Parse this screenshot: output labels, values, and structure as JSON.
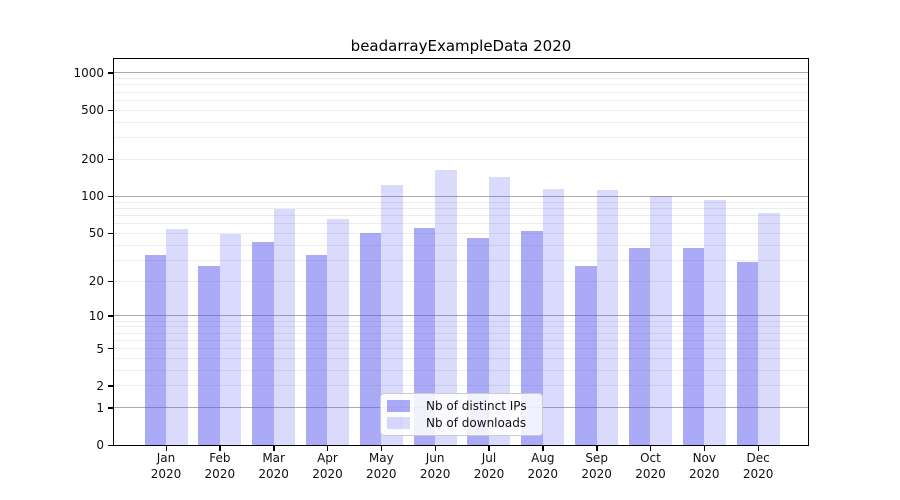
{
  "chart_data": {
    "type": "bar",
    "title": "beadarrayExampleData 2020",
    "categories": [
      "Jan 2020",
      "Feb 2020",
      "Mar 2020",
      "Apr 2020",
      "May 2020",
      "Jun 2020",
      "Jul 2020",
      "Aug 2020",
      "Sep 2020",
      "Oct 2020",
      "Nov 2020",
      "Dec 2020"
    ],
    "series": [
      {
        "name": "Nb of distinct IPs",
        "color": "rgba(85,85,240,0.50)",
        "values": [
          33,
          27,
          42,
          33,
          50,
          55,
          46,
          52,
          27,
          38,
          38,
          29
        ]
      },
      {
        "name": "Nb of downloads",
        "color": "rgba(85,85,240,0.22)",
        "values": [
          54,
          49,
          79,
          66,
          124,
          164,
          145,
          115,
          112,
          101,
          94,
          74
        ]
      }
    ],
    "xlabel": "",
    "ylabel": "",
    "yscale": "log1p",
    "ylim": [
      0,
      1300
    ],
    "yticks": [
      0,
      1,
      2,
      5,
      10,
      20,
      50,
      100,
      200,
      500,
      1000
    ],
    "grid": "horizontal, minor lines light gray at 2-9 per decade, major gray lines at 1/10/100/1000",
    "legend_position": "lower center inside plot",
    "legend_entries": [
      "Nb of distinct IPs",
      "Nb of downloads"
    ]
  },
  "colors": {
    "bar_base": "#5555f0",
    "bar_ips_rendered": "#aaaaf8",
    "bar_downloads_rendered": "#d8d8fa",
    "grid_minor": "#ececec",
    "grid_major": "#ababab",
    "spine": "#000000",
    "background": "#ffffff"
  }
}
